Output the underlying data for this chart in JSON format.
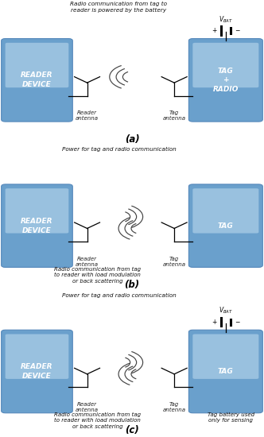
{
  "panels": [
    {
      "label": "(a)",
      "top_text": "Radio communication from tag to\nreader is powered by the battery",
      "bottom_text": null,
      "right_box_text": "TAG\n+\nRADIO",
      "has_battery": true,
      "waves_direction": "left_only",
      "has_tag_label": false
    },
    {
      "label": "(b)",
      "top_text": "Power for tag and radio communication",
      "bottom_text": "Radio communication from tag\nto reader with load modulation\nor back scattering",
      "right_box_text": "TAG",
      "has_battery": false,
      "waves_direction": "both",
      "has_tag_label": false
    },
    {
      "label": "(c)",
      "top_text": "Power for tag and radio communication",
      "bottom_text": "Radio communication from tag\nto reader with load modulation\nor back scattering",
      "right_box_text": "TAG",
      "has_battery": true,
      "waves_direction": "both",
      "has_tag_label": true
    }
  ],
  "bg_color": "#ffffff"
}
